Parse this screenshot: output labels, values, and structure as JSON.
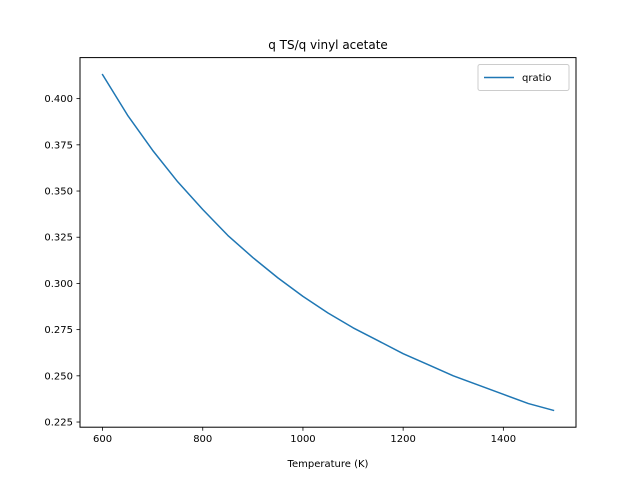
{
  "chart_data": {
    "type": "line",
    "title": "q TS/q vinyl acetate",
    "xlabel": "Temperature (K)",
    "ylabel": "",
    "xlim": [
      555,
      1545
    ],
    "ylim": [
      0.2222,
      0.4222
    ],
    "xticks": [
      600,
      800,
      1000,
      1200,
      1400
    ],
    "xtick_labels": [
      "600",
      "800",
      "1000",
      "1200",
      "1400"
    ],
    "yticks": [
      0.225,
      0.25,
      0.275,
      0.3,
      0.325,
      0.35,
      0.375,
      0.4
    ],
    "ytick_labels": [
      "0.225",
      "0.250",
      "0.275",
      "0.300",
      "0.325",
      "0.350",
      "0.375",
      "0.400"
    ],
    "grid": false,
    "legend_position": "top-right",
    "series": [
      {
        "name": "qratio",
        "color": "#1f77b4",
        "x": [
          600,
          650,
          700,
          750,
          800,
          850,
          900,
          950,
          1000,
          1050,
          1100,
          1150,
          1200,
          1250,
          1300,
          1350,
          1400,
          1450,
          1500
        ],
        "y": [
          0.413,
          0.391,
          0.372,
          0.355,
          0.34,
          0.326,
          0.314,
          0.303,
          0.293,
          0.284,
          0.276,
          0.269,
          0.262,
          0.256,
          0.25,
          0.245,
          0.24,
          0.235,
          0.2313
        ]
      }
    ]
  }
}
